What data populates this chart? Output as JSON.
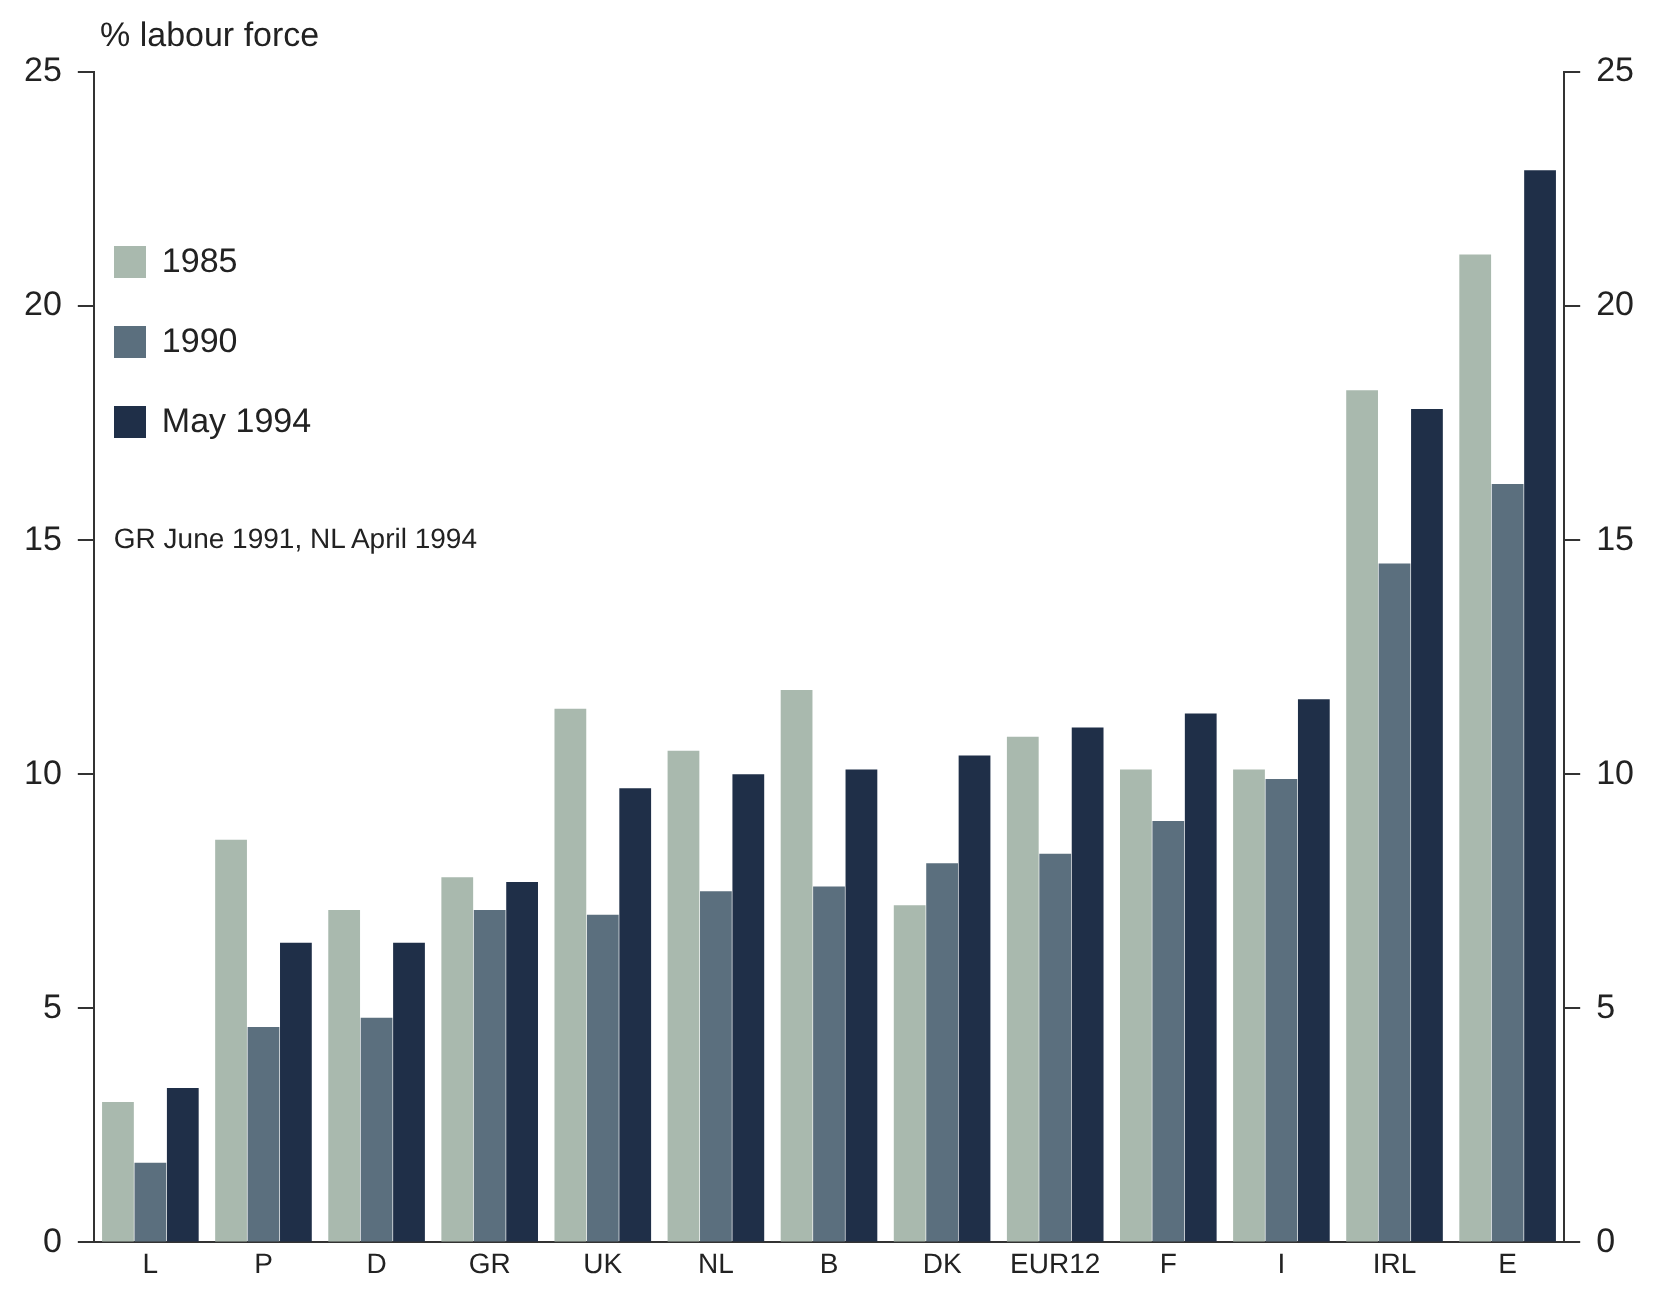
{
  "chart_data": {
    "type": "bar",
    "ylabel": "% labour force",
    "categories": [
      "L",
      "P",
      "D",
      "GR",
      "UK",
      "NL",
      "B",
      "DK",
      "EUR12",
      "F",
      "I",
      "IRL",
      "E"
    ],
    "series": [
      {
        "name": "1985",
        "color": "#a9b9ae",
        "values": [
          3.0,
          8.6,
          7.1,
          7.8,
          11.4,
          10.5,
          11.8,
          7.2,
          10.8,
          10.1,
          10.1,
          18.2,
          21.1
        ]
      },
      {
        "name": "1990",
        "color": "#5b6f7e",
        "values": [
          1.7,
          4.6,
          4.8,
          7.1,
          7.0,
          7.5,
          7.6,
          8.1,
          8.3,
          9.0,
          9.9,
          14.5,
          16.2
        ]
      },
      {
        "name": "May 1994",
        "color": "#1f2f48",
        "values": [
          3.3,
          6.4,
          6.4,
          7.7,
          9.7,
          10.0,
          10.1,
          10.4,
          11.0,
          11.3,
          11.6,
          17.8,
          22.9
        ]
      }
    ],
    "ylim": [
      0,
      25
    ],
    "yticks": [
      0,
      5,
      10,
      15,
      20,
      25
    ],
    "y2lim": [
      0,
      25
    ],
    "y2ticks": [
      0,
      5,
      10,
      15,
      20,
      25
    ],
    "grid": false,
    "legend": "top left",
    "annotations": [
      "GR June 1991, NL April 1994"
    ]
  }
}
